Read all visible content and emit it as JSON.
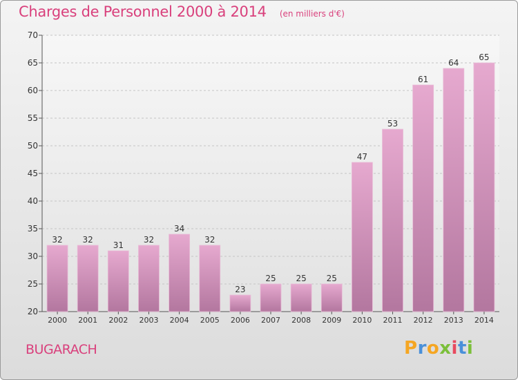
{
  "title": "Charges de Personnel 2000 à 2014",
  "subtitle": "(en milliers d'€)",
  "commune": "BUGARACH",
  "brand": {
    "parts": [
      "P",
      "r",
      "o",
      "x",
      "i",
      "t",
      "i"
    ]
  },
  "chart_data": {
    "type": "bar",
    "categories": [
      "2000",
      "2001",
      "2002",
      "2003",
      "2004",
      "2005",
      "2006",
      "2007",
      "2008",
      "2009",
      "2010",
      "2011",
      "2012",
      "2013",
      "2014"
    ],
    "values": [
      32,
      32,
      31,
      32,
      34,
      32,
      23,
      25,
      25,
      25,
      47,
      53,
      61,
      64,
      65
    ],
    "ylim": [
      20,
      70
    ],
    "yticks": [
      20,
      25,
      30,
      35,
      40,
      45,
      50,
      55,
      60,
      65,
      70
    ],
    "grid": true,
    "bar_color_top": "#e6a9cf",
    "bar_color_bottom": "#b3779f"
  }
}
